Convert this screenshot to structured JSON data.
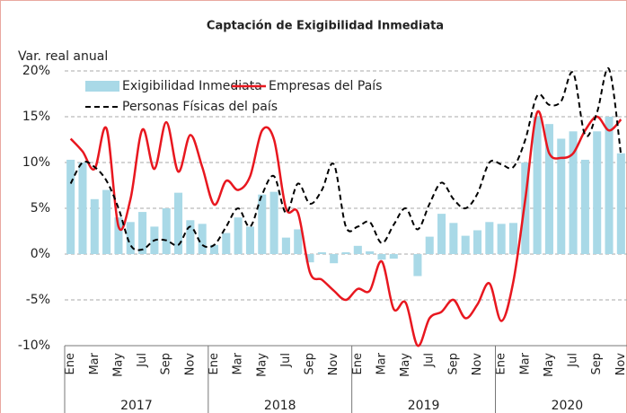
{
  "chart_data": {
    "type": "bar_line",
    "title": "Captación de Exigibilidad Inmediata",
    "y_label": "Var. real anual",
    "categories": [
      "Ene",
      null,
      "Mar",
      null,
      "May",
      null,
      "Jul",
      null,
      "Sep",
      null,
      "Nov",
      null,
      "Ene",
      null,
      "Mar",
      null,
      "May",
      null,
      "Jul",
      null,
      "Sep",
      null,
      "Nov",
      null,
      "Ene",
      null,
      "Mar",
      null,
      "May",
      null,
      "Jul",
      null,
      "Sep",
      null,
      "Nov",
      null,
      "Ene",
      null,
      "Mar",
      null,
      "May",
      null,
      "Jul",
      null,
      "Sep",
      null,
      "Nov"
    ],
    "year_groups": [
      "2017",
      "2018",
      "2019",
      "2020"
    ],
    "series": [
      {
        "name": "Exigibilidad Inmediata",
        "kind": "bar",
        "color": "#a9d9e7",
        "values": [
          10.3,
          10.0,
          6.0,
          7.0,
          4.0,
          3.5,
          4.6,
          3.0,
          5.0,
          6.7,
          3.7,
          3.3,
          1.0,
          2.3,
          4.0,
          3.0,
          6.5,
          6.8,
          1.8,
          2.7,
          -0.9,
          0.2,
          -1.0,
          0.2,
          0.9,
          0.3,
          -0.6,
          -0.5,
          0.0,
          -2.4,
          1.9,
          4.4,
          3.4,
          2.0,
          2.6,
          3.5,
          3.3,
          3.4,
          10.0,
          15.0,
          14.2,
          12.6,
          13.4,
          10.3,
          13.4,
          15.0,
          11.0
        ]
      },
      {
        "name": "Empresas del País",
        "kind": "line",
        "color": "#e8171f",
        "dash": false,
        "values": [
          12.6,
          11.2,
          9.3,
          13.7,
          3.0,
          6.0,
          13.6,
          9.3,
          14.4,
          9.0,
          13.0,
          9.5,
          5.4,
          8.0,
          7.0,
          8.5,
          13.5,
          12.5,
          5.0,
          4.5,
          -2.0,
          -2.8,
          -4.0,
          -5.0,
          -3.8,
          -4.0,
          -0.8,
          -6.0,
          -5.3,
          -10.0,
          -7.0,
          -6.3,
          -5.0,
          -7.0,
          -5.5,
          -3.2,
          -7.3,
          -3.0,
          6.0,
          15.5,
          11.0,
          10.5,
          11.0,
          13.5,
          15.0,
          13.5,
          14.7
        ]
      },
      {
        "name": "Personas Físicas del país",
        "kind": "line",
        "color": "#000000",
        "dash": true,
        "values": [
          7.7,
          10.0,
          9.5,
          8.0,
          5.0,
          1.0,
          0.5,
          1.5,
          1.5,
          1.0,
          3.0,
          1.0,
          1.0,
          3.0,
          5.0,
          3.0,
          6.5,
          8.5,
          4.5,
          7.7,
          5.5,
          7.0,
          9.8,
          3.0,
          3.0,
          3.5,
          1.2,
          3.2,
          5.0,
          2.7,
          5.5,
          7.8,
          6.0,
          5.0,
          6.6,
          10.0,
          9.8,
          9.5,
          12.5,
          17.3,
          16.3,
          16.7,
          19.8,
          13.0,
          15.5,
          20.2,
          10.8
        ]
      }
    ],
    "ylim": [
      -10,
      20
    ],
    "yticks": [
      {
        "value": -10,
        "label": "-10%"
      },
      {
        "value": -5,
        "label": "-5%"
      },
      {
        "value": 0,
        "label": "0%"
      },
      {
        "value": 5,
        "label": "5%"
      },
      {
        "value": 10,
        "label": "10%"
      },
      {
        "value": 15,
        "label": "15%"
      },
      {
        "value": 20,
        "label": "20%"
      }
    ],
    "grid": true,
    "legend": "top"
  }
}
